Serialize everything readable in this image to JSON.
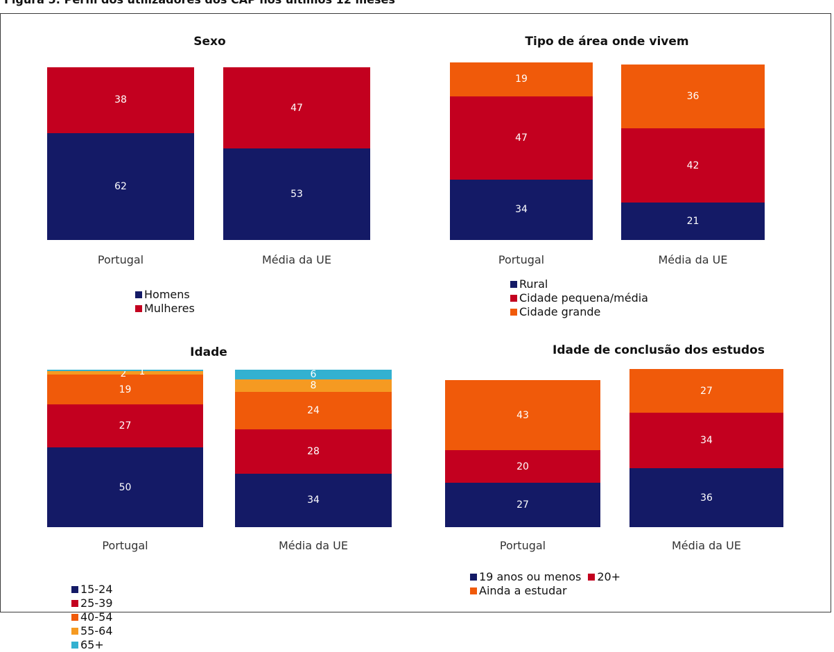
{
  "figure_title": "Figura 5: Perfil dos utilizadores dos CAP nos últimos 12 meses",
  "colors": {
    "navy": "#141a66",
    "red": "#c3001f",
    "orange": "#f05a0a",
    "light_orange": "#f59a22",
    "cyan": "#33b1d0"
  },
  "chart_data": [
    {
      "type": "bar",
      "stacked": true,
      "title": "Sexo",
      "categories": [
        "Portugal",
        "Média da UE"
      ],
      "series": [
        {
          "name": "Homens",
          "color": "#141a66",
          "values": [
            62,
            53
          ]
        },
        {
          "name": "Mulheres",
          "color": "#c3001f",
          "values": [
            38,
            47
          ]
        }
      ],
      "legend_layout": "row"
    },
    {
      "type": "bar",
      "stacked": true,
      "title": "Tipo de área onde vivem",
      "categories": [
        "Portugal",
        "Média da UE"
      ],
      "series": [
        {
          "name": "Rural",
          "color": "#141a66",
          "values": [
            34,
            21
          ]
        },
        {
          "name": "Cidade pequena/média",
          "color": "#c3001f",
          "values": [
            47,
            42
          ]
        },
        {
          "name": "Cidade grande",
          "color": "#f05a0a",
          "values": [
            19,
            36
          ]
        }
      ],
      "legend_layout": "column"
    },
    {
      "type": "bar",
      "stacked": true,
      "title": "Idade",
      "categories": [
        "Portugal",
        "Média da UE"
      ],
      "series": [
        {
          "name": "15-24",
          "color": "#141a66",
          "values": [
            50,
            34
          ]
        },
        {
          "name": "25-39",
          "color": "#c3001f",
          "values": [
            27,
            28
          ]
        },
        {
          "name": "40-54",
          "color": "#f05a0a",
          "values": [
            19,
            24
          ]
        },
        {
          "name": "55-64",
          "color": "#f59a22",
          "values": [
            2,
            8
          ]
        },
        {
          "name": "65+",
          "color": "#33b1d0",
          "values": [
            1,
            6
          ]
        }
      ],
      "legend_layout": "row"
    },
    {
      "type": "bar",
      "stacked": true,
      "title": "Idade de conclusão dos estudos",
      "categories": [
        "Portugal",
        "Média da UE"
      ],
      "series": [
        {
          "name": "19 anos ou menos",
          "color": "#141a66",
          "values": [
            27,
            36
          ]
        },
        {
          "name": "20+",
          "color": "#c3001f",
          "values": [
            20,
            34
          ]
        },
        {
          "name": "Ainda a estudar",
          "color": "#f05a0a",
          "values": [
            43,
            27
          ]
        }
      ],
      "legend_layout": "wrap"
    }
  ]
}
